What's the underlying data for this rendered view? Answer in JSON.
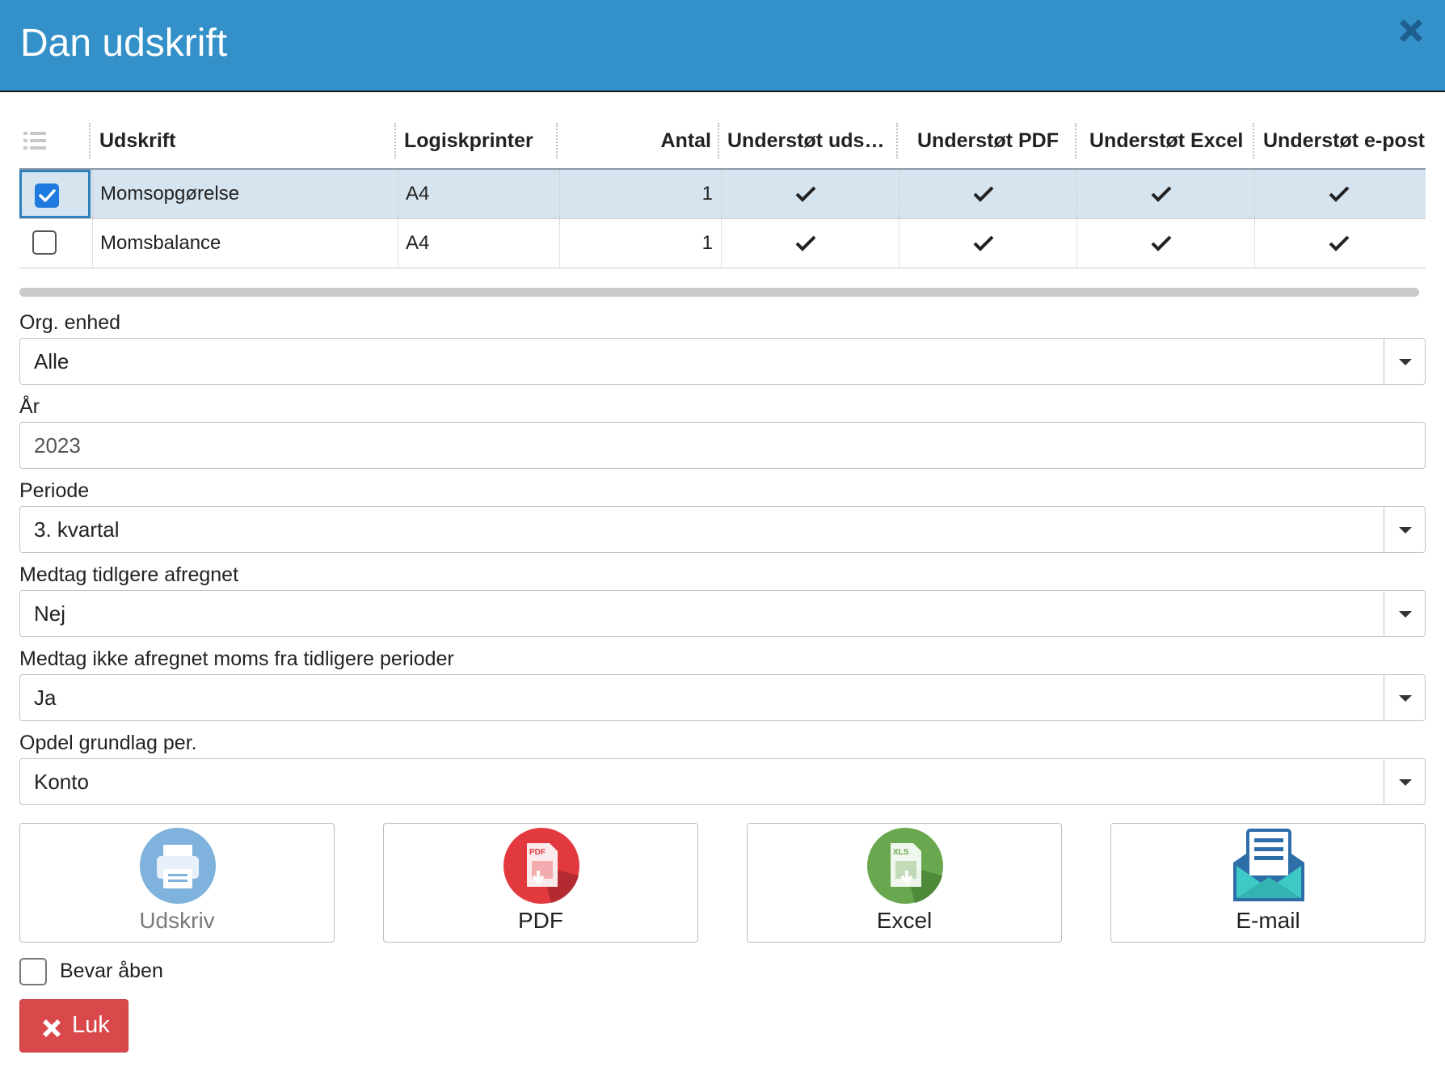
{
  "dialog": {
    "title": "Dan udskrift",
    "close_icon": "close-icon"
  },
  "grid": {
    "menu_icon": "list-icon",
    "columns": [
      "Udskrift",
      "Logiskprinter",
      "Antal",
      "Understøt uds…",
      "Understøt PDF",
      "Understøt Excel",
      "Understøt e-post"
    ],
    "rows": [
      {
        "selected": true,
        "name": "Momsopgørelse",
        "printer": "A4",
        "antal": "1",
        "print": true,
        "pdf": true,
        "excel": true,
        "email": true
      },
      {
        "selected": false,
        "name": "Momsbalance",
        "printer": "A4",
        "antal": "1",
        "print": true,
        "pdf": true,
        "excel": true,
        "email": true
      }
    ]
  },
  "form": {
    "org": {
      "label": "Org. enhed",
      "value": "Alle"
    },
    "year": {
      "label": "År",
      "value": "2023"
    },
    "period": {
      "label": "Periode",
      "value": "3. kvartal"
    },
    "include_settled": {
      "label": "Medtag tidlgere afregnet",
      "value": "Nej"
    },
    "include_unsettled": {
      "label": "Medtag ikke afregnet moms fra tidligere perioder",
      "value": "Ja"
    },
    "split": {
      "label": "Opdel grundlag per.",
      "value": "Konto"
    }
  },
  "actions": {
    "print": {
      "label": "Udskriv",
      "icon": "printer-icon",
      "color": "#7fb2dd"
    },
    "pdf": {
      "label": "PDF",
      "icon": "pdf-icon",
      "color": "#e2393f"
    },
    "excel": {
      "label": "Excel",
      "icon": "excel-icon",
      "color": "#6aa84f"
    },
    "email": {
      "label": "E-mail",
      "icon": "envelope-icon",
      "color": "#2d6da8"
    }
  },
  "keep_open": {
    "label": "Bevar åben",
    "checked": false
  },
  "close_button": {
    "label": "Luk",
    "icon": "x-icon",
    "color": "#d9494b"
  },
  "colors": {
    "header": "#3390c9",
    "selected_row": "#d6e4ef"
  }
}
